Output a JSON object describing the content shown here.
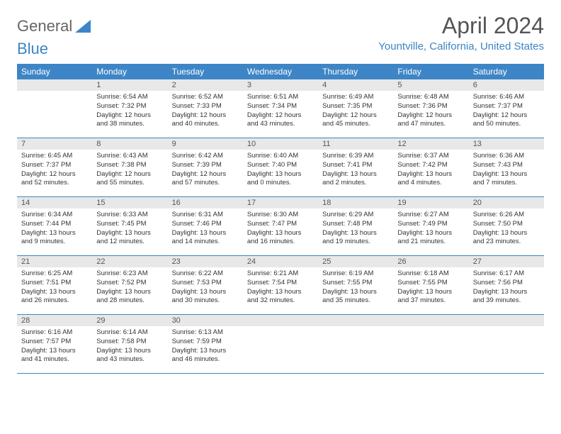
{
  "logo": {
    "text_general": "General",
    "text_blue": "Blue"
  },
  "title": "April 2024",
  "location": "Yountville, California, United States",
  "header_bg": "#3d85c6",
  "header_text": "#ffffff",
  "daynum_bg": "#e8e8e8",
  "border_color": "#3d85c6",
  "dayheads": [
    "Sunday",
    "Monday",
    "Tuesday",
    "Wednesday",
    "Thursday",
    "Friday",
    "Saturday"
  ],
  "weeks": [
    [
      {
        "day": "",
        "sunrise": "",
        "sunset": "",
        "daylight1": "",
        "daylight2": ""
      },
      {
        "day": "1",
        "sunrise": "Sunrise: 6:54 AM",
        "sunset": "Sunset: 7:32 PM",
        "daylight1": "Daylight: 12 hours",
        "daylight2": "and 38 minutes."
      },
      {
        "day": "2",
        "sunrise": "Sunrise: 6:52 AM",
        "sunset": "Sunset: 7:33 PM",
        "daylight1": "Daylight: 12 hours",
        "daylight2": "and 40 minutes."
      },
      {
        "day": "3",
        "sunrise": "Sunrise: 6:51 AM",
        "sunset": "Sunset: 7:34 PM",
        "daylight1": "Daylight: 12 hours",
        "daylight2": "and 43 minutes."
      },
      {
        "day": "4",
        "sunrise": "Sunrise: 6:49 AM",
        "sunset": "Sunset: 7:35 PM",
        "daylight1": "Daylight: 12 hours",
        "daylight2": "and 45 minutes."
      },
      {
        "day": "5",
        "sunrise": "Sunrise: 6:48 AM",
        "sunset": "Sunset: 7:36 PM",
        "daylight1": "Daylight: 12 hours",
        "daylight2": "and 47 minutes."
      },
      {
        "day": "6",
        "sunrise": "Sunrise: 6:46 AM",
        "sunset": "Sunset: 7:37 PM",
        "daylight1": "Daylight: 12 hours",
        "daylight2": "and 50 minutes."
      }
    ],
    [
      {
        "day": "7",
        "sunrise": "Sunrise: 6:45 AM",
        "sunset": "Sunset: 7:37 PM",
        "daylight1": "Daylight: 12 hours",
        "daylight2": "and 52 minutes."
      },
      {
        "day": "8",
        "sunrise": "Sunrise: 6:43 AM",
        "sunset": "Sunset: 7:38 PM",
        "daylight1": "Daylight: 12 hours",
        "daylight2": "and 55 minutes."
      },
      {
        "day": "9",
        "sunrise": "Sunrise: 6:42 AM",
        "sunset": "Sunset: 7:39 PM",
        "daylight1": "Daylight: 12 hours",
        "daylight2": "and 57 minutes."
      },
      {
        "day": "10",
        "sunrise": "Sunrise: 6:40 AM",
        "sunset": "Sunset: 7:40 PM",
        "daylight1": "Daylight: 13 hours",
        "daylight2": "and 0 minutes."
      },
      {
        "day": "11",
        "sunrise": "Sunrise: 6:39 AM",
        "sunset": "Sunset: 7:41 PM",
        "daylight1": "Daylight: 13 hours",
        "daylight2": "and 2 minutes."
      },
      {
        "day": "12",
        "sunrise": "Sunrise: 6:37 AM",
        "sunset": "Sunset: 7:42 PM",
        "daylight1": "Daylight: 13 hours",
        "daylight2": "and 4 minutes."
      },
      {
        "day": "13",
        "sunrise": "Sunrise: 6:36 AM",
        "sunset": "Sunset: 7:43 PM",
        "daylight1": "Daylight: 13 hours",
        "daylight2": "and 7 minutes."
      }
    ],
    [
      {
        "day": "14",
        "sunrise": "Sunrise: 6:34 AM",
        "sunset": "Sunset: 7:44 PM",
        "daylight1": "Daylight: 13 hours",
        "daylight2": "and 9 minutes."
      },
      {
        "day": "15",
        "sunrise": "Sunrise: 6:33 AM",
        "sunset": "Sunset: 7:45 PM",
        "daylight1": "Daylight: 13 hours",
        "daylight2": "and 12 minutes."
      },
      {
        "day": "16",
        "sunrise": "Sunrise: 6:31 AM",
        "sunset": "Sunset: 7:46 PM",
        "daylight1": "Daylight: 13 hours",
        "daylight2": "and 14 minutes."
      },
      {
        "day": "17",
        "sunrise": "Sunrise: 6:30 AM",
        "sunset": "Sunset: 7:47 PM",
        "daylight1": "Daylight: 13 hours",
        "daylight2": "and 16 minutes."
      },
      {
        "day": "18",
        "sunrise": "Sunrise: 6:29 AM",
        "sunset": "Sunset: 7:48 PM",
        "daylight1": "Daylight: 13 hours",
        "daylight2": "and 19 minutes."
      },
      {
        "day": "19",
        "sunrise": "Sunrise: 6:27 AM",
        "sunset": "Sunset: 7:49 PM",
        "daylight1": "Daylight: 13 hours",
        "daylight2": "and 21 minutes."
      },
      {
        "day": "20",
        "sunrise": "Sunrise: 6:26 AM",
        "sunset": "Sunset: 7:50 PM",
        "daylight1": "Daylight: 13 hours",
        "daylight2": "and 23 minutes."
      }
    ],
    [
      {
        "day": "21",
        "sunrise": "Sunrise: 6:25 AM",
        "sunset": "Sunset: 7:51 PM",
        "daylight1": "Daylight: 13 hours",
        "daylight2": "and 26 minutes."
      },
      {
        "day": "22",
        "sunrise": "Sunrise: 6:23 AM",
        "sunset": "Sunset: 7:52 PM",
        "daylight1": "Daylight: 13 hours",
        "daylight2": "and 28 minutes."
      },
      {
        "day": "23",
        "sunrise": "Sunrise: 6:22 AM",
        "sunset": "Sunset: 7:53 PM",
        "daylight1": "Daylight: 13 hours",
        "daylight2": "and 30 minutes."
      },
      {
        "day": "24",
        "sunrise": "Sunrise: 6:21 AM",
        "sunset": "Sunset: 7:54 PM",
        "daylight1": "Daylight: 13 hours",
        "daylight2": "and 32 minutes."
      },
      {
        "day": "25",
        "sunrise": "Sunrise: 6:19 AM",
        "sunset": "Sunset: 7:55 PM",
        "daylight1": "Daylight: 13 hours",
        "daylight2": "and 35 minutes."
      },
      {
        "day": "26",
        "sunrise": "Sunrise: 6:18 AM",
        "sunset": "Sunset: 7:55 PM",
        "daylight1": "Daylight: 13 hours",
        "daylight2": "and 37 minutes."
      },
      {
        "day": "27",
        "sunrise": "Sunrise: 6:17 AM",
        "sunset": "Sunset: 7:56 PM",
        "daylight1": "Daylight: 13 hours",
        "daylight2": "and 39 minutes."
      }
    ],
    [
      {
        "day": "28",
        "sunrise": "Sunrise: 6:16 AM",
        "sunset": "Sunset: 7:57 PM",
        "daylight1": "Daylight: 13 hours",
        "daylight2": "and 41 minutes."
      },
      {
        "day": "29",
        "sunrise": "Sunrise: 6:14 AM",
        "sunset": "Sunset: 7:58 PM",
        "daylight1": "Daylight: 13 hours",
        "daylight2": "and 43 minutes."
      },
      {
        "day": "30",
        "sunrise": "Sunrise: 6:13 AM",
        "sunset": "Sunset: 7:59 PM",
        "daylight1": "Daylight: 13 hours",
        "daylight2": "and 46 minutes."
      },
      {
        "day": "",
        "sunrise": "",
        "sunset": "",
        "daylight1": "",
        "daylight2": ""
      },
      {
        "day": "",
        "sunrise": "",
        "sunset": "",
        "daylight1": "",
        "daylight2": ""
      },
      {
        "day": "",
        "sunrise": "",
        "sunset": "",
        "daylight1": "",
        "daylight2": ""
      },
      {
        "day": "",
        "sunrise": "",
        "sunset": "",
        "daylight1": "",
        "daylight2": ""
      }
    ]
  ]
}
